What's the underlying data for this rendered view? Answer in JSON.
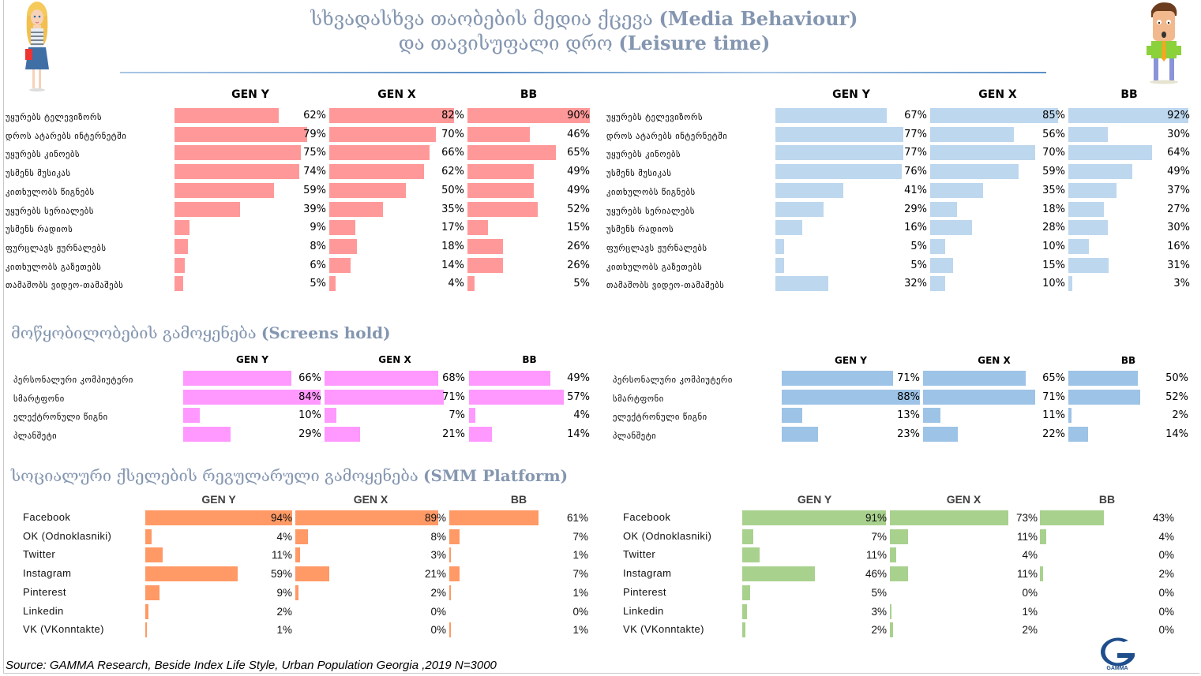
{
  "header": {
    "title_line1_ka": "სხვადასხვა თაობების მედია ქცევა",
    "title_line1_en": "(Media Behaviour)",
    "title_line2_ka": "და თავისუფალი დრო",
    "title_line2_en": "(Leisure time)"
  },
  "icons": {
    "female": "woman-character-icon",
    "male": "man-character-icon",
    "logo": "gamma-logo-icon"
  },
  "logo": {
    "text": "GAMMA"
  },
  "colors": {
    "media_female": "#ff9999",
    "media_male": "#bdd7ee",
    "screens_female": "#ff99ff",
    "screens_male": "#9dc3e6",
    "smm_female": "#ff9966",
    "smm_male": "#a9d18e",
    "title": "#8496b0"
  },
  "sections": {
    "screens_title_ka": "მოწყობილობების გამოყენება",
    "screens_title_en": "(Screens hold)",
    "smm_title_ka": "სოციალური ქსელების რეგულარული გამოყენება",
    "smm_title_en": "(SMM Platform)"
  },
  "generations": [
    "GEN Y",
    "GEN X",
    "BB"
  ],
  "source": "Source: GAMMA Research, Beside Index Life Style, Urban Population Georgia ,2019 N=3000",
  "chart_data": [
    {
      "id": "media-female",
      "type": "bar",
      "title": "Media Behaviour (female)",
      "unit": "%",
      "categories": [
        "უყურებს ტელევიზორს",
        "დროს ატარებს ინტერნეტში",
        "უყურებს კინოებს",
        "უსმენს მუსიკას",
        "კითხულობს წიგნებს",
        "უყურებს სერიალებს",
        "უსმენს რადიოს",
        "ფურცლავს ჟურნალებს",
        "კითხულობს გაზეთებს",
        "თამაშობს ვიდეო-თამაშებს"
      ],
      "series": [
        {
          "name": "GEN Y",
          "values": [
            62,
            79,
            75,
            74,
            59,
            39,
            9,
            8,
            6,
            5
          ]
        },
        {
          "name": "GEN X",
          "values": [
            82,
            70,
            66,
            62,
            50,
            35,
            17,
            18,
            14,
            4
          ]
        },
        {
          "name": "BB",
          "values": [
            90,
            46,
            65,
            49,
            49,
            52,
            15,
            26,
            26,
            5
          ]
        }
      ]
    },
    {
      "id": "media-male",
      "type": "bar",
      "title": "Media Behaviour (male)",
      "unit": "%",
      "categories": [
        "უყურებს ტელევიზორს",
        "დროს ატარებს ინტერნეტში",
        "უყურებს კინოებს",
        "უსმენს მუსიკას",
        "კითხულობს წიგნებს",
        "უყურებს სერიალებს",
        "უსმენს რადიოს",
        "ფურცლავს ჟურნალებს",
        "კითხულობს გაზეთებს",
        "თამაშობს ვიდეო-თამაშებს"
      ],
      "series": [
        {
          "name": "GEN Y",
          "values": [
            67,
            77,
            77,
            76,
            41,
            29,
            16,
            5,
            5,
            32
          ]
        },
        {
          "name": "GEN X",
          "values": [
            85,
            56,
            70,
            59,
            35,
            18,
            28,
            10,
            15,
            10
          ]
        },
        {
          "name": "BB",
          "values": [
            92,
            30,
            64,
            49,
            37,
            27,
            30,
            16,
            31,
            3
          ]
        }
      ]
    },
    {
      "id": "screens-female",
      "type": "bar",
      "title": "Screens hold (female)",
      "unit": "%",
      "categories": [
        "პერსონალური კომპიუტერი",
        "სმარტფონი",
        "ელექტრონული წიგნი",
        "პლანშეტი"
      ],
      "series": [
        {
          "name": "GEN Y",
          "values": [
            66,
            84,
            10,
            29
          ]
        },
        {
          "name": "GEN X",
          "values": [
            68,
            71,
            7,
            21
          ]
        },
        {
          "name": "BB",
          "values": [
            49,
            57,
            4,
            14
          ]
        }
      ]
    },
    {
      "id": "screens-male",
      "type": "bar",
      "title": "Screens hold (male)",
      "unit": "%",
      "categories": [
        "პერსონალური კომპიუტერი",
        "სმარტფონი",
        "ელექტრონული წიგნი",
        "პლანშეტი"
      ],
      "series": [
        {
          "name": "GEN Y",
          "values": [
            71,
            88,
            13,
            23
          ]
        },
        {
          "name": "GEN X",
          "values": [
            65,
            71,
            11,
            22
          ]
        },
        {
          "name": "BB",
          "values": [
            50,
            52,
            2,
            14
          ]
        }
      ]
    },
    {
      "id": "smm-female",
      "type": "bar",
      "title": "SMM Platform (female)",
      "unit": "%",
      "categories": [
        "Facebook",
        "OK (Odnoklasniki)",
        "Twitter",
        "Instagram",
        "Pinterest",
        "Linkedin",
        "VK (VKonntakte)"
      ],
      "series": [
        {
          "name": "GEN Y",
          "values": [
            94,
            4,
            11,
            59,
            9,
            2,
            1
          ]
        },
        {
          "name": "GEN X",
          "values": [
            89,
            8,
            3,
            21,
            2,
            0,
            0
          ]
        },
        {
          "name": "BB",
          "values": [
            61,
            7,
            1,
            7,
            1,
            0,
            1
          ]
        }
      ]
    },
    {
      "id": "smm-male",
      "type": "bar",
      "title": "SMM Platform (male)",
      "unit": "%",
      "categories": [
        "Facebook",
        "OK (Odnoklasniki)",
        "Twitter",
        "Instagram",
        "Pinterest",
        "Linkedin",
        "VK (VKonntakte)"
      ],
      "series": [
        {
          "name": "GEN Y",
          "values": [
            91,
            7,
            11,
            46,
            5,
            3,
            2
          ]
        },
        {
          "name": "GEN X",
          "values": [
            73,
            11,
            4,
            11,
            0,
            1,
            2
          ]
        },
        {
          "name": "BB",
          "values": [
            43,
            4,
            0,
            2,
            0,
            0,
            0
          ]
        }
      ]
    }
  ]
}
